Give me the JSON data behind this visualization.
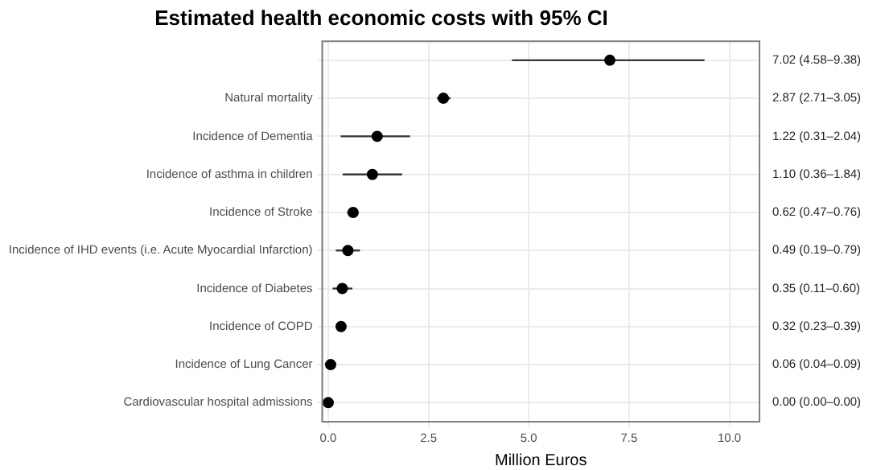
{
  "chart_data": {
    "type": "scatter",
    "orientation": "horizontal",
    "title": "Estimated health economic costs with 95% CI",
    "xlabel": "Million Euros",
    "categories": [
      null,
      "Natural mortality",
      "Incidence of Dementia",
      "Incidence of asthma in children",
      "Incidence of Stroke",
      "Incidence of IHD events (i.e. Acute Myocardial Infarction)",
      "Incidence of Diabetes",
      "Incidence of COPD",
      "Incidence of Lung Cancer",
      "Cardiovascular hospital admissions"
    ],
    "values": [
      7.02,
      2.87,
      1.22,
      1.1,
      0.62,
      0.49,
      0.35,
      0.32,
      0.06,
      0.0
    ],
    "errors": [
      [
        4.58,
        9.38
      ],
      [
        2.71,
        3.05
      ],
      [
        0.31,
        2.04
      ],
      [
        0.36,
        1.84
      ],
      [
        0.47,
        0.76
      ],
      [
        0.19,
        0.79
      ],
      [
        0.11,
        0.6
      ],
      [
        0.23,
        0.39
      ],
      [
        0.04,
        0.09
      ],
      [
        0.0,
        0.0
      ]
    ],
    "value_labels": [
      "7.02 (4.58–9.38)",
      "2.87 (2.71–3.05)",
      "1.22 (0.31–2.04)",
      "1.10 (0.36–1.84)",
      "0.62 (0.47–0.76)",
      "0.49 (0.19–0.79)",
      "0.35 (0.11–0.60)",
      "0.32 (0.23–0.39)",
      "0.06 (0.04–0.09)",
      "0.00 (0.00–0.00)"
    ],
    "color": "#000000",
    "marker": "circle",
    "xlim": [
      -0.15,
      10.75
    ],
    "xticks": [
      {
        "value": 0,
        "label": "0.0"
      },
      {
        "value": 2.5,
        "label": "2.5"
      },
      {
        "value": 5,
        "label": "5.0"
      },
      {
        "value": 7.5,
        "label": "7.5"
      },
      {
        "value": 10,
        "label": "10.0"
      }
    ],
    "grid": true,
    "legend": false
  }
}
